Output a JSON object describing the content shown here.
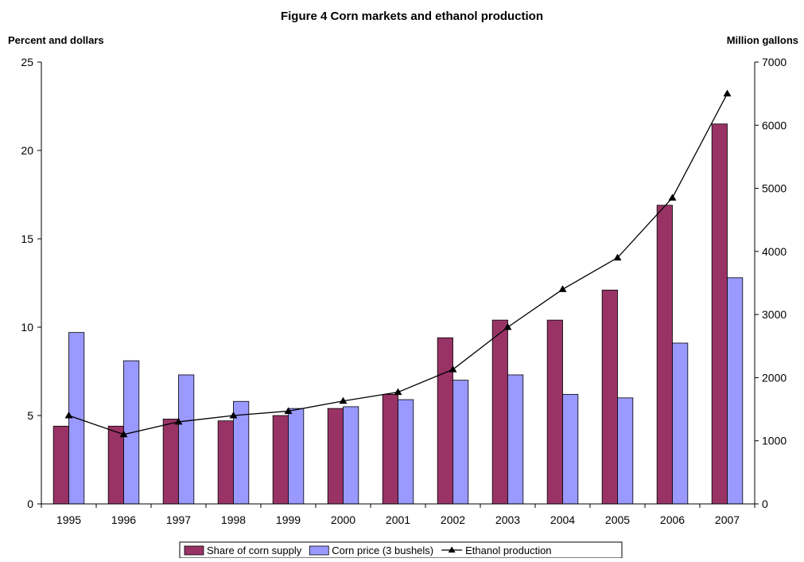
{
  "chart_data": {
    "type": "bar",
    "title": "Figure 4 Corn markets and ethanol production",
    "ylabel_left": "Percent and dollars",
    "ylabel_right": "Million gallons",
    "categories": [
      "1995",
      "1996",
      "1997",
      "1998",
      "1999",
      "2000",
      "2001",
      "2002",
      "2003",
      "2004",
      "2005",
      "2006",
      "2007"
    ],
    "ylim_left": [
      0,
      25
    ],
    "yticks_left": [
      0,
      5,
      10,
      15,
      20,
      25
    ],
    "ylim_right": [
      0,
      7000
    ],
    "yticks_right": [
      0,
      1000,
      2000,
      3000,
      4000,
      5000,
      6000,
      7000
    ],
    "grid": false,
    "legend_position": "bottom",
    "series": [
      {
        "name": "Share of corn supply",
        "kind": "bar",
        "axis": "left",
        "color": "#993366",
        "values": [
          4.4,
          4.4,
          4.8,
          4.7,
          5.0,
          5.4,
          6.2,
          9.4,
          10.4,
          10.4,
          12.1,
          16.9,
          21.5
        ]
      },
      {
        "name": "Corn price (3 bushels)",
        "kind": "bar",
        "axis": "left",
        "color": "#9999FF",
        "values": [
          9.7,
          8.1,
          7.3,
          5.8,
          5.4,
          5.5,
          5.9,
          7.0,
          7.3,
          6.2,
          6.0,
          9.1,
          12.8
        ]
      },
      {
        "name": "Ethanol production",
        "kind": "line",
        "axis": "right",
        "color": "#000000",
        "marker": "triangle",
        "values": [
          1400,
          1100,
          1300,
          1400,
          1470,
          1630,
          1770,
          2130,
          2800,
          3400,
          3900,
          4850,
          6500
        ]
      }
    ]
  }
}
